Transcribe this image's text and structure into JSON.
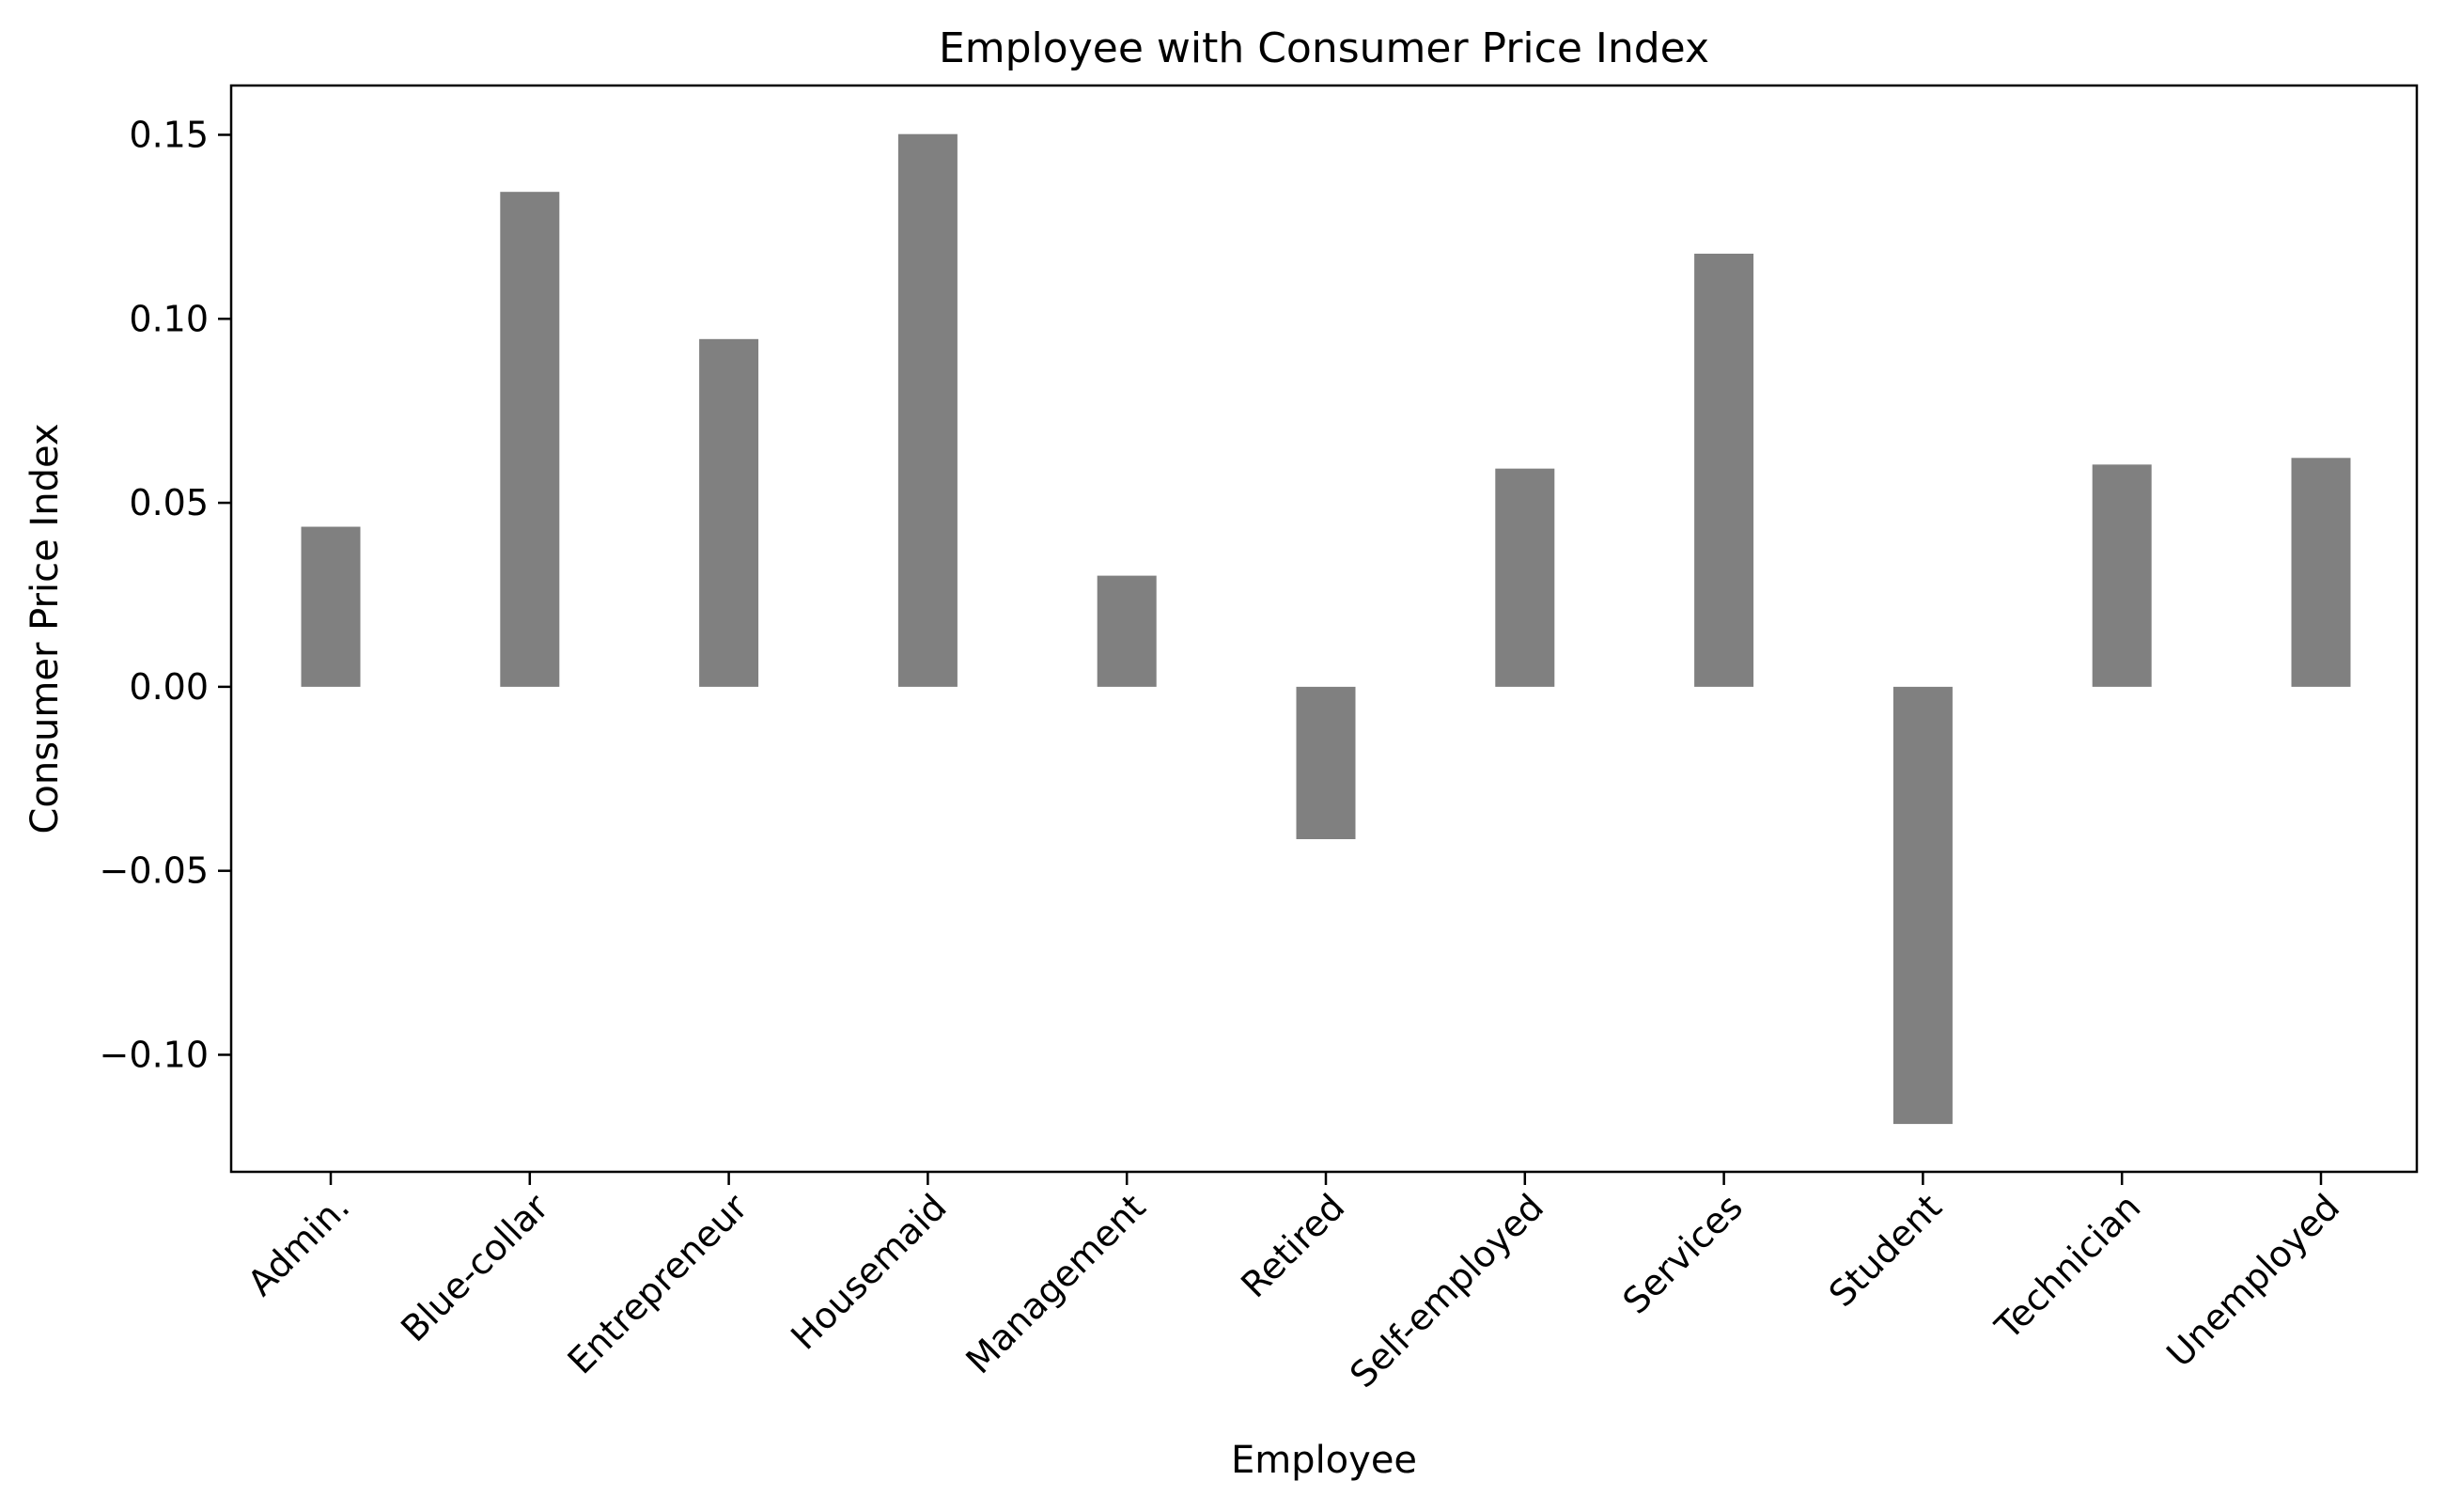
{
  "chart_data": {
    "type": "bar",
    "title": "Employee with Consumer Price Index",
    "xlabel": "Employee",
    "ylabel": "Consumer Price Index",
    "categories": [
      "Admin.",
      "Blue-collar",
      "Entrepreneur",
      "Housemaid",
      "Management",
      "Retired",
      "Self-employed",
      "Services",
      "Student",
      "Technician",
      "Unemployed"
    ],
    "values": [
      0.0435,
      0.1345,
      0.0945,
      0.1502,
      0.0302,
      -0.0414,
      0.0593,
      0.1177,
      -0.1188,
      0.0604,
      0.0622
    ],
    "yticks": [
      -0.1,
      -0.05,
      0.0,
      0.05,
      0.1,
      0.15
    ],
    "ytick_labels": [
      "−0.10",
      "−0.05",
      "0.00",
      "0.05",
      "0.10",
      "0.15"
    ],
    "ylim": [
      -0.1318,
      0.1634
    ],
    "bar_color": "#808080",
    "grid": false,
    "legend": false
  }
}
